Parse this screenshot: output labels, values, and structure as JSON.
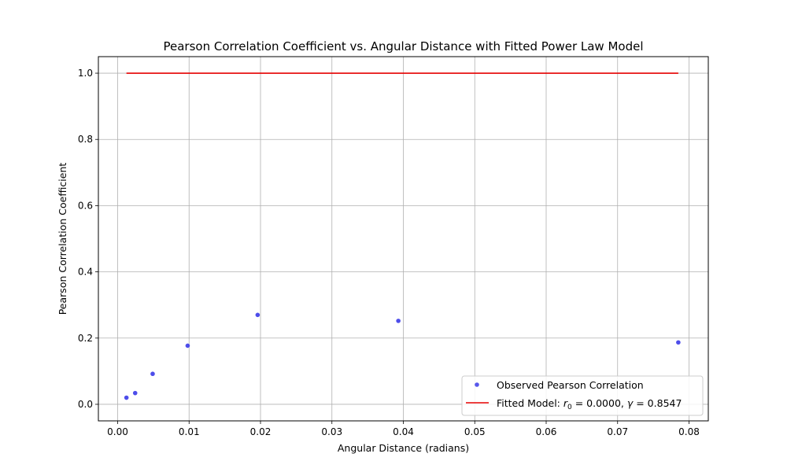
{
  "chart_data": {
    "type": "scatter",
    "title": "Pearson Correlation Coefficient vs. Angular Distance with Fitted Power Law Model",
    "xlabel": "Angular Distance (radians)",
    "ylabel": "Pearson Correlation Coefficient",
    "xlim": [
      -0.0027,
      0.0827
    ],
    "ylim": [
      -0.05,
      1.05
    ],
    "xticks": [
      0.0,
      0.01,
      0.02,
      0.03,
      0.04,
      0.05,
      0.06,
      0.07,
      0.08
    ],
    "xtick_labels": [
      "0.00",
      "0.01",
      "0.02",
      "0.03",
      "0.04",
      "0.05",
      "0.06",
      "0.07",
      "0.08"
    ],
    "yticks": [
      0.0,
      0.2,
      0.4,
      0.6,
      0.8,
      1.0
    ],
    "ytick_labels": [
      "0.0",
      "0.2",
      "0.4",
      "0.6",
      "0.8",
      "1.0"
    ],
    "grid": true,
    "legend_position": "lower-right",
    "series": [
      {
        "name": "Observed Pearson Correlation",
        "kind": "scatter",
        "color": "#3a3ae8",
        "x": [
          0.00123,
          0.00245,
          0.0049,
          0.0098,
          0.0196,
          0.0393,
          0.0785
        ],
        "y": [
          0.02,
          0.034,
          0.092,
          0.177,
          0.27,
          0.252,
          0.187
        ]
      },
      {
        "name": "Fitted Model: r0 = 0.0000, γ = 0.8547",
        "kind": "line",
        "color": "#e50000",
        "x": [
          0.00123,
          0.0785
        ],
        "y": [
          1.0,
          1.0
        ]
      }
    ],
    "legend": {
      "scatter_label": "Observed Pearson Correlation",
      "line_label_prefix": "Fitted Model: ",
      "line_r_symbol": "r",
      "line_r_sub": "0",
      "line_r_value": " = 0.0000, ",
      "line_gamma_symbol": "γ",
      "line_gamma_value": " = 0.8547"
    }
  }
}
